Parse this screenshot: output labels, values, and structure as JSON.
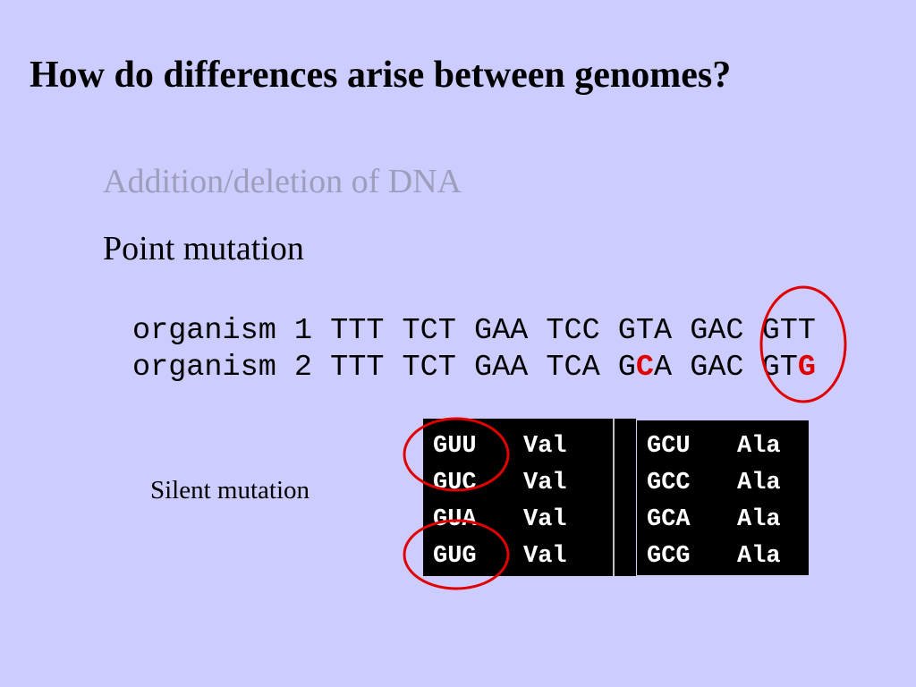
{
  "title": "How do differences arise between genomes?",
  "bullets": [
    "Addition/deletion of DNA",
    "Point mutation"
  ],
  "sequences": [
    [
      "organism 1 TTT TCT GAA TCC GTA GAC GTT"
    ],
    [
      "organism 2 TTT TCT GAA TCA G",
      "C",
      "A GAC GT",
      "G"
    ]
  ],
  "label": "Silent mutation",
  "tables": [
    [
      [
        "GUU",
        "Val"
      ],
      [
        "GUC",
        "Val"
      ],
      [
        "GUA",
        "Val"
      ],
      [
        "GUG",
        "Val"
      ]
    ],
    [
      [
        "GCU",
        "Ala"
      ],
      [
        "GCC",
        "Ala"
      ],
      [
        "GCA",
        "Ala"
      ],
      [
        "GCG",
        "Ala"
      ]
    ]
  ]
}
